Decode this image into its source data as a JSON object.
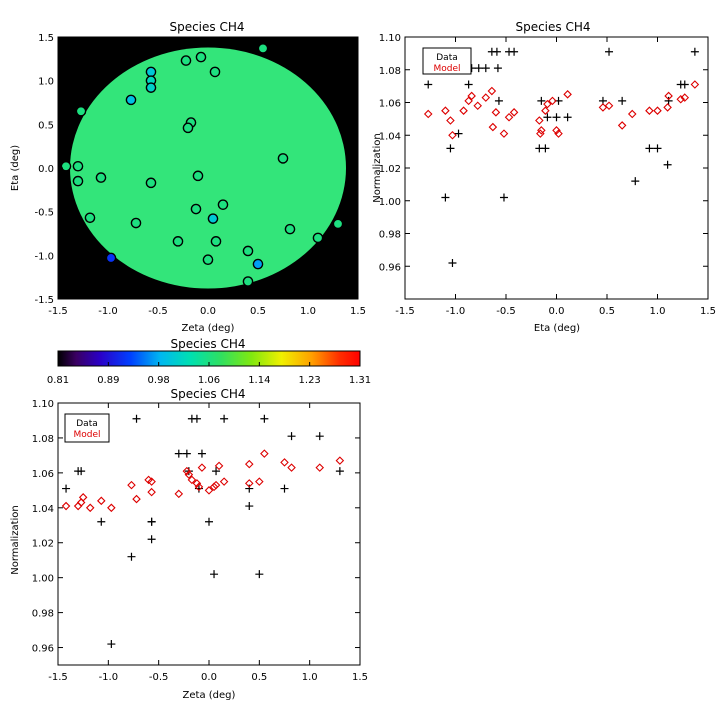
{
  "chart_data": [
    {
      "id": "map",
      "type": "scatter",
      "title": "Species CH4",
      "xlabel": "Zeta (deg)",
      "ylabel": "Eta (deg)",
      "xlim": [
        -1.5,
        1.5
      ],
      "ylim": [
        -1.5,
        1.5
      ],
      "xticks": [
        "-1.5",
        "-1.0",
        "-0.5",
        "0.0",
        "0.5",
        "1.0",
        "1.5"
      ],
      "yticks": [
        "-1.5",
        "-1.0",
        "-0.5",
        "0.0",
        "0.5",
        "1.0",
        "1.5"
      ],
      "disk_radius_deg": 1.38,
      "background_color": "#000000",
      "disk_color": "#33e57a",
      "points": [
        {
          "zeta": 0.55,
          "eta": 1.37,
          "value": 1.06
        },
        {
          "zeta": -0.57,
          "eta": 1.1,
          "value": 1.0
        },
        {
          "zeta": -0.57,
          "eta": 1.0,
          "value": 1.02
        },
        {
          "zeta": -0.57,
          "eta": 0.92,
          "value": 1.01
        },
        {
          "zeta": -0.77,
          "eta": 0.78,
          "value": 0.99
        },
        {
          "zeta": -0.22,
          "eta": 1.23,
          "value": 1.06
        },
        {
          "zeta": -0.07,
          "eta": 1.27,
          "value": 1.06
        },
        {
          "zeta": 0.07,
          "eta": 1.1,
          "value": 1.06
        },
        {
          "zeta": -1.27,
          "eta": 0.65,
          "value": 1.06
        },
        {
          "zeta": -0.17,
          "eta": 0.52,
          "value": 1.06
        },
        {
          "zeta": -0.2,
          "eta": 0.46,
          "value": 1.06
        },
        {
          "zeta": 0.75,
          "eta": 0.11,
          "value": 1.06
        },
        {
          "zeta": -1.42,
          "eta": 0.02,
          "value": 1.06
        },
        {
          "zeta": -1.3,
          "eta": 0.02,
          "value": 1.06
        },
        {
          "zeta": -1.3,
          "eta": -0.15,
          "value": 1.06
        },
        {
          "zeta": -1.07,
          "eta": -0.11,
          "value": 1.06
        },
        {
          "zeta": -0.57,
          "eta": -0.17,
          "value": 1.06
        },
        {
          "zeta": -0.1,
          "eta": -0.09,
          "value": 1.06
        },
        {
          "zeta": -1.18,
          "eta": -0.57,
          "value": 1.06
        },
        {
          "zeta": -0.72,
          "eta": -0.63,
          "value": 1.06
        },
        {
          "zeta": -0.12,
          "eta": -0.47,
          "value": 1.06
        },
        {
          "zeta": 0.15,
          "eta": -0.42,
          "value": 1.06
        },
        {
          "zeta": 0.05,
          "eta": -0.58,
          "value": 1.0
        },
        {
          "zeta": -0.3,
          "eta": -0.84,
          "value": 1.06
        },
        {
          "zeta": 0.08,
          "eta": -0.84,
          "value": 1.06
        },
        {
          "zeta": 0.82,
          "eta": -0.7,
          "value": 1.06
        },
        {
          "zeta": 1.1,
          "eta": -0.8,
          "value": 1.06
        },
        {
          "zeta": 1.3,
          "eta": -0.64,
          "value": 1.06
        },
        {
          "zeta": 0.4,
          "eta": -0.95,
          "value": 1.06
        },
        {
          "zeta": 0.5,
          "eta": -1.1,
          "value": 0.97
        },
        {
          "zeta": 0.0,
          "eta": -1.05,
          "value": 1.06
        },
        {
          "zeta": -0.97,
          "eta": -1.03,
          "value": 0.92
        },
        {
          "zeta": 0.4,
          "eta": -1.3,
          "value": 1.06
        }
      ]
    },
    {
      "id": "colorbar",
      "type": "heatmap",
      "title": "Species CH4",
      "colormap": "rainbow",
      "range": [
        0.81,
        1.31
      ],
      "tick_labels": [
        "0.81",
        "0.89",
        "0.98",
        "1.06",
        "1.14",
        "1.23",
        "1.31"
      ]
    },
    {
      "id": "eta_plot",
      "type": "scatter",
      "title": "Species CH4",
      "xlabel": "Eta (deg)",
      "ylabel": "Normalization",
      "xlim": [
        -1.5,
        1.5
      ],
      "ylim": [
        0.94,
        1.1
      ],
      "xticks": [
        "-1.5",
        "-1.0",
        "-0.5",
        "0.0",
        "0.5",
        "1.0",
        "1.5"
      ],
      "yticks": [
        "0.96",
        "0.98",
        "1.00",
        "1.02",
        "1.04",
        "1.06",
        "1.08",
        "1.10"
      ],
      "legend": {
        "position": "top-left",
        "entries": [
          {
            "name": "Data",
            "color": "#000000"
          },
          {
            "name": "Model",
            "color": "#dd0000"
          }
        ]
      },
      "series": [
        {
          "name": "Data",
          "marker": "plus",
          "color": "#000000",
          "points": [
            [
              -1.27,
              1.071
            ],
            [
              -1.1,
              1.002
            ],
            [
              -1.05,
              1.032
            ],
            [
              -1.03,
              0.962
            ],
            [
              -0.97,
              1.041
            ],
            [
              -0.87,
              1.071
            ],
            [
              -0.84,
              1.081
            ],
            [
              -0.77,
              1.081
            ],
            [
              -0.7,
              1.081
            ],
            [
              -0.64,
              1.091
            ],
            [
              -0.59,
              1.091
            ],
            [
              -0.58,
              1.081
            ],
            [
              -0.57,
              1.061
            ],
            [
              -0.52,
              1.002
            ],
            [
              -0.47,
              1.091
            ],
            [
              -0.42,
              1.091
            ],
            [
              -0.17,
              1.032
            ],
            [
              -0.15,
              1.061
            ],
            [
              -0.11,
              1.032
            ],
            [
              -0.09,
              1.051
            ],
            [
              0.0,
              1.051
            ],
            [
              0.02,
              1.061
            ],
            [
              0.11,
              1.051
            ],
            [
              0.46,
              1.061
            ],
            [
              0.52,
              1.091
            ],
            [
              0.65,
              1.061
            ],
            [
              0.78,
              1.012
            ],
            [
              0.92,
              1.032
            ],
            [
              1.0,
              1.032
            ],
            [
              1.1,
              1.022
            ],
            [
              1.11,
              1.061
            ],
            [
              1.23,
              1.071
            ],
            [
              1.27,
              1.071
            ],
            [
              1.37,
              1.091
            ]
          ]
        },
        {
          "name": "Model",
          "marker": "diamond",
          "color": "#dd0000",
          "points": [
            [
              -1.27,
              1.053
            ],
            [
              -1.1,
              1.055
            ],
            [
              -1.05,
              1.049
            ],
            [
              -1.03,
              1.04
            ],
            [
              -0.92,
              1.055
            ],
            [
              -0.87,
              1.061
            ],
            [
              -0.84,
              1.064
            ],
            [
              -0.78,
              1.058
            ],
            [
              -0.7,
              1.063
            ],
            [
              -0.64,
              1.067
            ],
            [
              -0.63,
              1.045
            ],
            [
              -0.6,
              1.054
            ],
            [
              -0.52,
              1.041
            ],
            [
              -0.47,
              1.051
            ],
            [
              -0.42,
              1.054
            ],
            [
              -0.17,
              1.049
            ],
            [
              -0.16,
              1.041
            ],
            [
              -0.15,
              1.043
            ],
            [
              -0.11,
              1.055
            ],
            [
              -0.09,
              1.059
            ],
            [
              -0.04,
              1.061
            ],
            [
              0.0,
              1.043
            ],
            [
              0.02,
              1.041
            ],
            [
              0.11,
              1.065
            ],
            [
              0.46,
              1.057
            ],
            [
              0.52,
              1.058
            ],
            [
              0.65,
              1.046
            ],
            [
              0.75,
              1.053
            ],
            [
              0.92,
              1.055
            ],
            [
              1.0,
              1.055
            ],
            [
              1.1,
              1.057
            ],
            [
              1.11,
              1.064
            ],
            [
              1.23,
              1.062
            ],
            [
              1.27,
              1.063
            ],
            [
              1.37,
              1.071
            ]
          ]
        }
      ]
    },
    {
      "id": "zeta_plot",
      "type": "scatter",
      "title": "Species CH4",
      "xlabel": "Zeta (deg)",
      "ylabel": "Normalization",
      "xlim": [
        -1.5,
        1.5
      ],
      "ylim": [
        0.95,
        1.1
      ],
      "xticks": [
        "-1.5",
        "-1.0",
        "-0.5",
        "0.0",
        "0.5",
        "1.0",
        "1.5"
      ],
      "yticks": [
        "0.96",
        "0.98",
        "1.00",
        "1.02",
        "1.04",
        "1.06",
        "1.08",
        "1.10"
      ],
      "legend": {
        "position": "top-left",
        "entries": [
          {
            "name": "Data",
            "color": "#000000"
          },
          {
            "name": "Model",
            "color": "#dd0000"
          }
        ]
      },
      "series": [
        {
          "name": "Data",
          "marker": "plus",
          "color": "#000000",
          "points": [
            [
              -1.42,
              1.051
            ],
            [
              -1.3,
              1.061
            ],
            [
              -1.27,
              1.061
            ],
            [
              -1.18,
              1.082
            ],
            [
              -1.07,
              1.032
            ],
            [
              -0.97,
              0.962
            ],
            [
              -0.77,
              1.012
            ],
            [
              -0.72,
              1.091
            ],
            [
              -0.57,
              1.032
            ],
            [
              -0.57,
              1.022
            ],
            [
              -0.57,
              1.032
            ],
            [
              -0.3,
              1.071
            ],
            [
              -0.22,
              1.071
            ],
            [
              -0.2,
              1.061
            ],
            [
              -0.17,
              1.091
            ],
            [
              -0.12,
              1.091
            ],
            [
              -0.1,
              1.051
            ],
            [
              -0.07,
              1.071
            ],
            [
              0.0,
              1.032
            ],
            [
              0.05,
              1.002
            ],
            [
              0.07,
              1.061
            ],
            [
              0.15,
              1.091
            ],
            [
              0.4,
              1.041
            ],
            [
              0.4,
              1.051
            ],
            [
              0.5,
              1.002
            ],
            [
              0.55,
              1.091
            ],
            [
              0.75,
              1.051
            ],
            [
              0.82,
              1.081
            ],
            [
              1.1,
              1.081
            ],
            [
              1.3,
              1.061
            ]
          ]
        },
        {
          "name": "Model",
          "marker": "diamond",
          "color": "#dd0000",
          "points": [
            [
              -1.42,
              1.041
            ],
            [
              -1.3,
              1.041
            ],
            [
              -1.27,
              1.043
            ],
            [
              -1.25,
              1.046
            ],
            [
              -1.18,
              1.04
            ],
            [
              -1.07,
              1.044
            ],
            [
              -0.97,
              1.04
            ],
            [
              -0.77,
              1.053
            ],
            [
              -0.72,
              1.045
            ],
            [
              -0.6,
              1.056
            ],
            [
              -0.57,
              1.049
            ],
            [
              -0.57,
              1.055
            ],
            [
              -0.3,
              1.048
            ],
            [
              -0.22,
              1.061
            ],
            [
              -0.2,
              1.059
            ],
            [
              -0.17,
              1.056
            ],
            [
              -0.12,
              1.054
            ],
            [
              -0.1,
              1.052
            ],
            [
              -0.07,
              1.063
            ],
            [
              0.0,
              1.05
            ],
            [
              0.05,
              1.052
            ],
            [
              0.07,
              1.053
            ],
            [
              0.1,
              1.064
            ],
            [
              0.15,
              1.055
            ],
            [
              0.4,
              1.054
            ],
            [
              0.4,
              1.065
            ],
            [
              0.5,
              1.055
            ],
            [
              0.55,
              1.071
            ],
            [
              0.75,
              1.066
            ],
            [
              0.82,
              1.063
            ],
            [
              1.1,
              1.063
            ],
            [
              1.3,
              1.067
            ]
          ]
        }
      ]
    }
  ]
}
